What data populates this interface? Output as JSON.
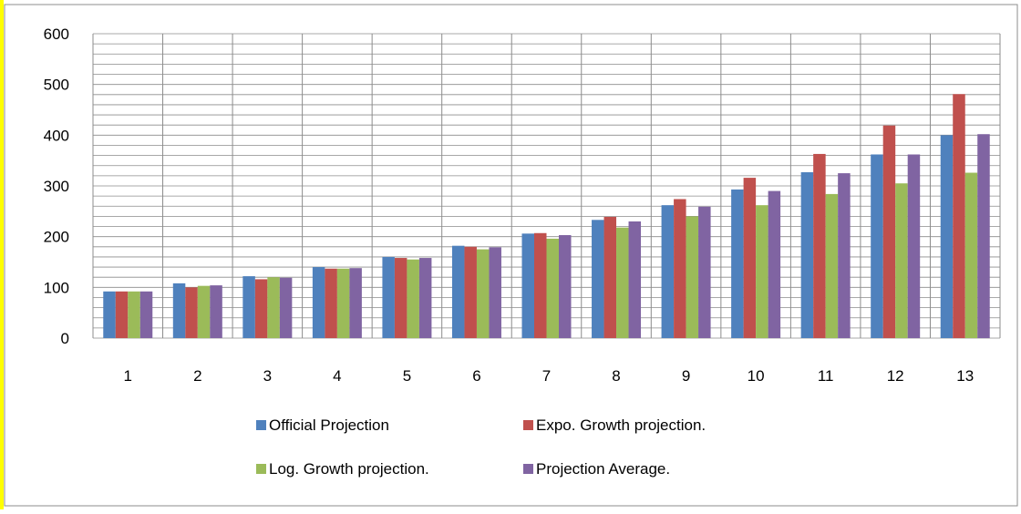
{
  "chart_data": {
    "type": "bar",
    "title": "",
    "xlabel": "",
    "ylabel": "",
    "ylim": [
      0,
      600
    ],
    "y_major_ticks": [
      0,
      100,
      200,
      300,
      400,
      500,
      600
    ],
    "y_minor_step": 20,
    "grid": true,
    "legend_placement": "bottom",
    "categories": [
      "1",
      "2",
      "3",
      "4",
      "5",
      "6",
      "7",
      "8",
      "9",
      "10",
      "11",
      "12",
      "13"
    ],
    "series": [
      {
        "name": "Official Projection",
        "color": "#4F81BD",
        "values": [
          92,
          108,
          122,
          140,
          160,
          182,
          206,
          233,
          262,
          293,
          327,
          362,
          400
        ]
      },
      {
        "name": "Expo. Growth projection.",
        "color": "#C0504D",
        "values": [
          92,
          100,
          116,
          137,
          158,
          180,
          207,
          239,
          274,
          316,
          363,
          419,
          481
        ]
      },
      {
        "name": "Log. Growth projection.",
        "color": "#9BBB59",
        "values": [
          92,
          103,
          120,
          137,
          155,
          175,
          196,
          218,
          240,
          262,
          284,
          305,
          326
        ]
      },
      {
        "name": "Projection Average.",
        "color": "#8064A2",
        "values": [
          92,
          104,
          119,
          138,
          158,
          179,
          203,
          230,
          259,
          290,
          325,
          362,
          402
        ]
      }
    ]
  },
  "frame": {
    "left_accent_color": "#FFFF00",
    "border_color": "#8C8C8C",
    "grid_color": "#8C8C8C"
  }
}
